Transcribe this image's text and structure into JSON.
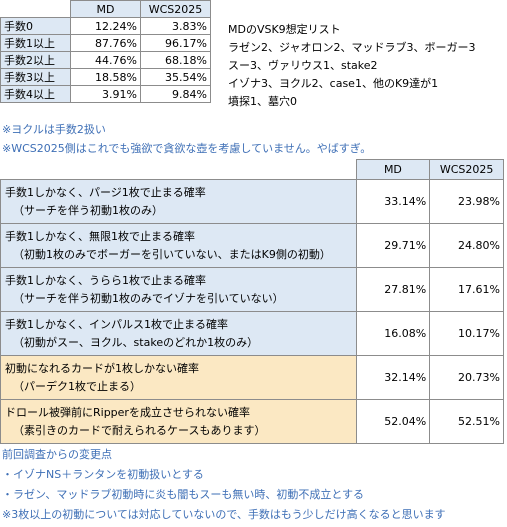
{
  "table1": {
    "headers": [
      "MD",
      "WCS2025"
    ],
    "rows": [
      {
        "label": "手数0",
        "md": "12.24%",
        "wcs": "3.83%"
      },
      {
        "label": "手数1以上",
        "md": "87.76%",
        "wcs": "96.17%"
      },
      {
        "label": "手数2以上",
        "md": "44.76%",
        "wcs": "68.18%"
      },
      {
        "label": "手数3以上",
        "md": "18.58%",
        "wcs": "35.54%"
      },
      {
        "label": "手数4以上",
        "md": "3.91%",
        "wcs": "9.84%"
      }
    ]
  },
  "k9_list": [
    "MDのVSK9想定リスト",
    "ラゼン2、ジャオロン2、マッドラブ3、ボーガー3",
    "スー3、ヴァリウス1、stake2",
    "イゾナ3、ヨクル2、case1、他のK9達が1",
    "墳探1、墓穴0"
  ],
  "notes_mid": [
    "※ヨクルは手数2扱い",
    "※WCS2025側はこれでも強欲で貪欲な壺を考慮していません。やばすぎ。"
  ],
  "table2": {
    "headers": [
      "MD",
      "WCS2025"
    ],
    "rows": [
      {
        "line1": "手数1しかなく、パージ1枚で止まる確率",
        "line2": "（サーチを伴う初動1枚のみ）",
        "md": "33.14%",
        "wcs": "23.98%"
      },
      {
        "line1": "手数1しかなく、無限1枚で止まる確率",
        "line2": "（初動1枚のみでボーガーを引いていない、またはK9側の初動）",
        "md": "29.71%",
        "wcs": "24.80%"
      },
      {
        "line1": "手数1しかなく、うらら1枚で止まる確率",
        "line2": "（サーチを伴う初動1枚のみでイゾナを引いていない）",
        "md": "27.81%",
        "wcs": "17.61%"
      },
      {
        "line1": "手数1しかなく、インパルス1枚で止まる確率",
        "line2": "（初動がスー、ヨクル、stakeのどれか1枚のみ）",
        "md": "16.08%",
        "wcs": "10.17%"
      },
      {
        "line1": "初動になれるカードが1枚しかない確率",
        "line2": "（パーデク1枚で止まる）",
        "md": "32.14%",
        "wcs": "20.73%"
      },
      {
        "line1": "ドロール被弾前にRipperを成立させられない確率",
        "line2": "（素引きのカードで耐えられるケースもあります）",
        "md": "52.04%",
        "wcs": "52.51%"
      }
    ]
  },
  "notes_bottom": [
    "前回調査からの変更点",
    "・イゾナNS＋ランタンを初動扱いとする",
    "・ラゼン、マッドラブ初動時に炎も闇もスーも無い時、初動不成立とする",
    "※3枚以上の初動については対応していないので、手数はもう少しだけ高くなると思います"
  ],
  "colors": {
    "header_blue": "#dde8f4",
    "orange_row": "#fbe8c3",
    "note_blue": "#3e6fb6",
    "border": "#8c8c8c"
  }
}
